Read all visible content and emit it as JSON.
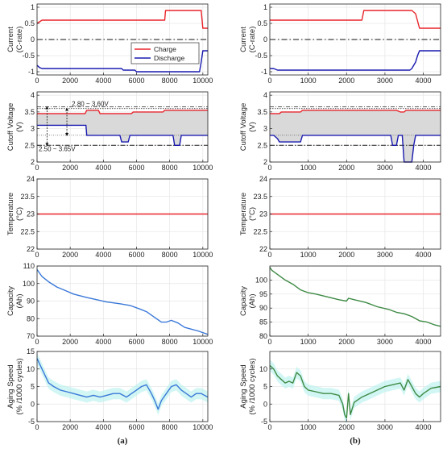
{
  "colors": {
    "charge": "#e8242b",
    "discharge": "#1a1ab0",
    "temperature": "#e8242b",
    "capacity_a": "#3a78d8",
    "capacity_b": "#3e8a44",
    "aging_a": "#3a78d8",
    "aging_b": "#3e8a44",
    "aging_band": "#bff2ef",
    "window_fill": "#d9d9d9",
    "grid": "#e6e6e6"
  },
  "panels": [
    {
      "label": "(a)"
    },
    {
      "label": "(b)"
    }
  ],
  "chart_data": [
    {
      "type": "line",
      "column": 0,
      "row": 0,
      "ylabel": [
        "Current",
        "(C-rate)"
      ],
      "xlim": [
        0,
        10300
      ],
      "ylim": [
        -1.1,
        1.1
      ],
      "xticks": [
        0,
        2000,
        4000,
        6000,
        8000,
        10000
      ],
      "yticks": [
        -1,
        -0.5,
        0,
        0.5,
        1
      ],
      "legend": {
        "placement": "center-right",
        "entries": [
          "Charge",
          "Discharge"
        ]
      },
      "zero_line": 0,
      "series": [
        {
          "name": "Charge",
          "color_key": "charge",
          "x": [
            0,
            150,
            300,
            7700,
            7750,
            9900,
            10000,
            10300
          ],
          "y": [
            0.5,
            0.55,
            0.6,
            0.6,
            0.9,
            0.9,
            0.35,
            0.35
          ]
        },
        {
          "name": "Discharge",
          "color_key": "discharge",
          "x": [
            0,
            150,
            300,
            5100,
            5200,
            5900,
            6000,
            9800,
            9900,
            10000,
            10300
          ],
          "y": [
            -0.8,
            -0.87,
            -0.9,
            -0.9,
            -0.95,
            -0.95,
            -1.0,
            -1.0,
            -0.7,
            -0.35,
            -0.35
          ]
        }
      ]
    },
    {
      "type": "line",
      "column": 0,
      "row": 1,
      "ylabel": [
        "Cutoff Voltage",
        "(V)"
      ],
      "xlim": [
        0,
        10300
      ],
      "ylim": [
        2.0,
        4.1
      ],
      "xticks": [
        0,
        2000,
        4000,
        6000,
        8000,
        10000
      ],
      "yticks": [
        2,
        2.5,
        3,
        3.5,
        4
      ],
      "ytick_labels": [
        "2",
        "2.5",
        "3",
        "3.5",
        "4"
      ],
      "ref_lines": {
        "upper": [
          3.6,
          3.65
        ],
        "lower": 2.5
      },
      "annotations": [
        "2.80 ~ 3.60V",
        "2.50 ~ 3.65V"
      ],
      "series": [
        {
          "name": "Charge",
          "color_key": "charge",
          "x": [
            0,
            2900,
            3000,
            3700,
            3800,
            5700,
            5800,
            7600,
            7700,
            10300
          ],
          "y": [
            3.45,
            3.45,
            3.55,
            3.55,
            3.45,
            3.45,
            3.5,
            3.5,
            3.55,
            3.55
          ]
        },
        {
          "name": "Discharge",
          "color_key": "discharge",
          "x": [
            0,
            2950,
            3000,
            5000,
            5100,
            5500,
            5600,
            8200,
            8300,
            8600,
            8700,
            10300
          ],
          "y": [
            3.1,
            3.1,
            2.8,
            2.8,
            2.6,
            2.6,
            2.8,
            2.8,
            2.5,
            2.5,
            2.8,
            2.8
          ]
        }
      ]
    },
    {
      "type": "line",
      "column": 0,
      "row": 2,
      "ylabel": [
        "Temperature",
        "(°C)"
      ],
      "xlim": [
        0,
        10300
      ],
      "ylim": [
        22,
        24
      ],
      "xticks": [
        0,
        2000,
        4000,
        6000,
        8000,
        10000
      ],
      "yticks": [
        22,
        22.5,
        23,
        23.5,
        24
      ],
      "series": [
        {
          "color_key": "temperature",
          "x": [
            0,
            10300
          ],
          "y": [
            23,
            23
          ]
        }
      ]
    },
    {
      "type": "line",
      "column": 0,
      "row": 3,
      "ylabel": [
        "Capacity",
        "(Ah)"
      ],
      "xlim": [
        0,
        10300
      ],
      "ylim": [
        70,
        110
      ],
      "xticks": [
        0,
        2000,
        4000,
        6000,
        8000,
        10000
      ],
      "yticks": [
        70,
        80,
        90,
        100,
        110
      ],
      "series": [
        {
          "color_key": "capacity_a",
          "x": [
            0,
            300,
            700,
            1200,
            1700,
            2200,
            3000,
            3500,
            4200,
            5000,
            5600,
            6200,
            6600,
            6900,
            7200,
            7500,
            7800,
            8100,
            8500,
            8900,
            9300,
            9700,
            10000,
            10300
          ],
          "y": [
            108,
            104,
            101,
            98,
            96,
            94,
            92,
            91,
            89.5,
            88.5,
            87.5,
            85.5,
            84,
            82,
            80,
            78,
            78,
            79,
            77.5,
            75,
            74,
            73,
            72,
            71
          ]
        }
      ]
    },
    {
      "type": "line",
      "column": 0,
      "row": 4,
      "ylabel": [
        "Aging Speed",
        "(% /1000 cycles)"
      ],
      "xlim": [
        0,
        10300
      ],
      "ylim": [
        -5,
        15
      ],
      "xticks": [
        0,
        2000,
        4000,
        6000,
        8000,
        10000
      ],
      "yticks": [
        -5,
        0,
        5,
        10,
        15
      ],
      "band_color_key": "aging_band",
      "series": [
        {
          "color_key": "aging_a",
          "x": [
            0,
            200,
            400,
            700,
            1000,
            1400,
            1800,
            2200,
            2600,
            3000,
            3400,
            3800,
            4200,
            4600,
            5000,
            5400,
            5700,
            6000,
            6300,
            6600,
            6900,
            7100,
            7300,
            7500,
            7800,
            8100,
            8400,
            8700,
            9000,
            9300,
            9600,
            9900,
            10300
          ],
          "y": [
            13,
            11,
            9,
            6,
            5,
            4,
            3.5,
            3,
            2.5,
            2,
            2.5,
            2,
            2.5,
            3,
            3,
            2,
            3,
            4,
            5,
            5.5,
            3,
            1,
            -1.5,
            1,
            3,
            5,
            5.5,
            4,
            3,
            2,
            3,
            3,
            2
          ]
        }
      ]
    },
    {
      "type": "line",
      "column": 1,
      "row": 0,
      "ylabel": [
        "Current",
        "(C-rate)"
      ],
      "xlim": [
        0,
        4450
      ],
      "ylim": [
        -1.1,
        1.1
      ],
      "xticks": [
        0,
        1000,
        2000,
        3000,
        4000
      ],
      "yticks": [
        -1,
        -0.5,
        0,
        0.5,
        1
      ],
      "zero_line": 0,
      "series": [
        {
          "name": "Charge",
          "color_key": "charge",
          "x": [
            0,
            2400,
            2450,
            3700,
            3800,
            3900,
            4450
          ],
          "y": [
            0.6,
            0.6,
            0.9,
            0.9,
            0.8,
            0.35,
            0.35
          ]
        },
        {
          "name": "Discharge",
          "color_key": "discharge",
          "x": [
            0,
            100,
            200,
            3650,
            3700,
            3800,
            3850,
            3900,
            4450
          ],
          "y": [
            -0.9,
            -0.9,
            -0.95,
            -0.95,
            -0.9,
            -0.7,
            -0.5,
            -0.35,
            -0.35
          ]
        }
      ]
    },
    {
      "type": "line",
      "column": 1,
      "row": 1,
      "ylabel": [
        "Cutoff Voltage",
        "(V)"
      ],
      "xlim": [
        0,
        4450
      ],
      "ylim": [
        2.0,
        4.1
      ],
      "xticks": [
        0,
        1000,
        2000,
        3000,
        4000
      ],
      "yticks": [
        2,
        2.5,
        3,
        3.5,
        4
      ],
      "ytick_labels": [
        "2",
        "2.5",
        "3",
        "3.5",
        "4"
      ],
      "ref_lines": {
        "upper": [
          3.6,
          3.65
        ],
        "lower": 2.5
      },
      "series": [
        {
          "name": "Charge",
          "color_key": "charge",
          "x": [
            0,
            250,
            300,
            800,
            850,
            3300,
            3400,
            3500,
            3550,
            4450
          ],
          "y": [
            3.45,
            3.45,
            3.5,
            3.5,
            3.55,
            3.55,
            3.5,
            3.5,
            3.55,
            3.55
          ]
        },
        {
          "name": "Discharge",
          "color_key": "discharge",
          "x": [
            0,
            100,
            200,
            250,
            300,
            800,
            850,
            3150,
            3200,
            3300,
            3350,
            3450,
            3500,
            3600,
            3700,
            3750,
            3800,
            4450
          ],
          "y": [
            2.8,
            2.8,
            2.7,
            2.6,
            2.6,
            2.6,
            2.8,
            2.8,
            2.5,
            2.5,
            2.8,
            2.8,
            2.0,
            2.0,
            2.0,
            2.5,
            2.8,
            2.8
          ]
        }
      ]
    },
    {
      "type": "line",
      "column": 1,
      "row": 2,
      "ylabel": [
        "Temperature",
        "(°C)"
      ],
      "xlim": [
        0,
        4450
      ],
      "ylim": [
        22,
        24
      ],
      "xticks": [
        0,
        1000,
        2000,
        3000,
        4000
      ],
      "yticks": [
        22,
        22.5,
        23,
        23.5,
        24
      ],
      "series": [
        {
          "color_key": "temperature",
          "x": [
            0,
            4450
          ],
          "y": [
            23,
            23
          ]
        }
      ]
    },
    {
      "type": "line",
      "column": 1,
      "row": 3,
      "ylabel": [
        "Capacity",
        "(Ah)"
      ],
      "xlim": [
        0,
        4450
      ],
      "ylim": [
        80,
        105
      ],
      "xticks": [
        0,
        1000,
        2000,
        3000,
        4000
      ],
      "yticks": [
        80,
        85,
        90,
        95,
        100
      ],
      "series": [
        {
          "color_key": "capacity_b",
          "x": [
            0,
            50,
            200,
            400,
            600,
            800,
            1000,
            1200,
            1500,
            1800,
            2000,
            2050,
            2200,
            2500,
            2800,
            3100,
            3300,
            3500,
            3700,
            3900,
            4100,
            4300,
            4450
          ],
          "y": [
            104.5,
            103.5,
            102,
            100,
            98.5,
            96.5,
            95.5,
            95,
            94,
            93,
            92.5,
            93.5,
            93,
            92,
            90.5,
            89.5,
            88.5,
            88,
            87,
            85.5,
            85,
            84,
            83.5
          ]
        }
      ]
    },
    {
      "type": "line",
      "column": 1,
      "row": 4,
      "ylabel": [
        "Aging Speed",
        "(% /1000 cycles)"
      ],
      "xlim": [
        0,
        4450
      ],
      "ylim": [
        -5,
        15
      ],
      "xticks": [
        0,
        1000,
        2000,
        3000,
        4000
      ],
      "yticks": [
        -5,
        0,
        5,
        10
      ],
      "band_color_key": "aging_band",
      "series": [
        {
          "color_key": "capacity_b",
          "x": [
            0,
            100,
            200,
            300,
            400,
            500,
            600,
            700,
            800,
            900,
            1000,
            1200,
            1400,
            1600,
            1800,
            1900,
            1950,
            2000,
            2050,
            2100,
            2200,
            2400,
            2600,
            2800,
            3000,
            3200,
            3400,
            3500,
            3600,
            3700,
            3800,
            3900,
            4000,
            4200,
            4450
          ],
          "y": [
            11,
            10,
            8,
            7,
            6,
            6.5,
            6,
            9,
            8,
            5,
            4,
            3.5,
            3,
            3,
            2.5,
            0,
            -3,
            -4,
            3,
            -3,
            0.5,
            2,
            3,
            4,
            5,
            5.5,
            6,
            4,
            7,
            5,
            3,
            2,
            3,
            4.5,
            5
          ]
        }
      ]
    }
  ]
}
